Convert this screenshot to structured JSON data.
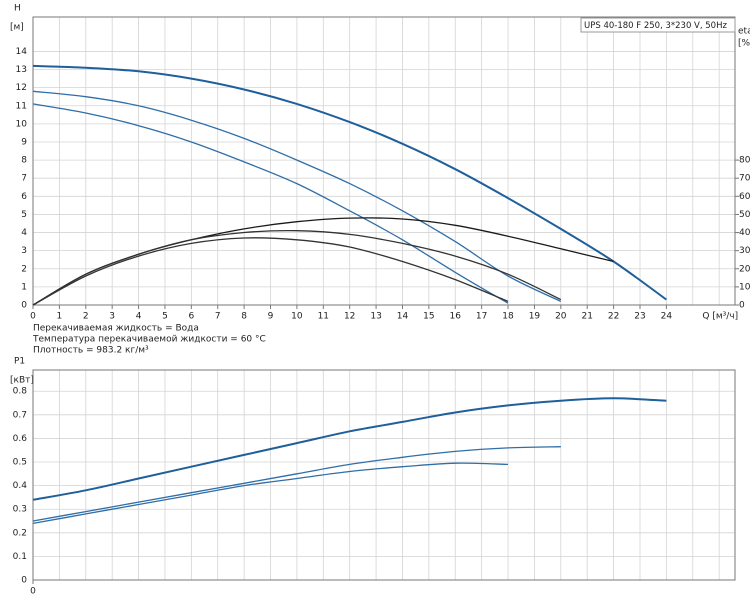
{
  "chart_data": [
    {
      "type": "line",
      "title": "UPS 40-180 F 250, 3*230 V, 50Hz",
      "ylabel": "H",
      "yunit": "[м]",
      "y2label": "eta",
      "y2unit": "[%]",
      "xlabel": "Q [м³/ч]",
      "notes": [
        "Перекачиваемая жидкость = Вода",
        "Температура перекачиваемой жидкости = 60 °C",
        "Плотность = 983.2 кг/м³"
      ],
      "x": [
        0,
        2,
        4,
        6,
        8,
        10,
        12,
        14,
        16,
        18,
        20,
        22,
        24
      ],
      "xlim": [
        0,
        26.6
      ],
      "xticks": [
        0,
        1,
        2,
        3,
        4,
        5,
        6,
        7,
        8,
        9,
        10,
        11,
        12,
        13,
        14,
        15,
        16,
        17,
        18,
        19,
        20,
        21,
        22,
        23,
        24
      ],
      "ylim": [
        0,
        15.9
      ],
      "yticks": [
        0,
        1,
        2,
        3,
        4,
        5,
        6,
        7,
        8,
        9,
        10,
        11,
        12,
        13,
        14
      ],
      "y2lim": [
        0,
        159
      ],
      "y2ticks": [
        0,
        10,
        20,
        30,
        40,
        50,
        60,
        70,
        80
      ],
      "grid": true,
      "series": [
        {
          "color": "#1f5f9a",
          "values": [
            13.2,
            13.1,
            12.9,
            12.5,
            11.9,
            11.1,
            10.1,
            8.9,
            7.5,
            5.9,
            4.2,
            2.4,
            0.3
          ]
        },
        {
          "color": "#2f6ea8",
          "values": [
            11.8,
            11.5,
            11.0,
            10.2,
            9.2,
            8.0,
            6.7,
            5.2,
            3.5,
            1.6,
            0.2,
            null,
            null
          ]
        },
        {
          "color": "#2f6ea8",
          "values": [
            11.1,
            10.6,
            9.9,
            9.0,
            7.9,
            6.7,
            5.2,
            3.6,
            1.8,
            0.1,
            null,
            null,
            null
          ]
        },
        {
          "color": "#1a1a1a",
          "axis": "y2",
          "values": [
            0,
            17,
            28,
            36,
            42,
            46,
            48,
            47.5,
            44,
            38,
            31,
            24,
            null
          ]
        },
        {
          "color": "#333333",
          "axis": "y2",
          "values": [
            0,
            17,
            28,
            36,
            40,
            41,
            39,
            34,
            27,
            17,
            3,
            null,
            null
          ]
        },
        {
          "color": "#333333",
          "axis": "y2",
          "values": [
            0,
            16,
            27,
            34,
            37,
            36,
            32,
            24,
            14,
            2,
            null,
            null,
            null
          ]
        }
      ]
    },
    {
      "type": "line",
      "ylabel": "P1",
      "yunit": "[кВт]",
      "x": [
        0,
        2,
        4,
        6,
        8,
        10,
        12,
        14,
        16,
        18,
        20,
        22,
        24
      ],
      "xlim": [
        0,
        26.6
      ],
      "xticks": [
        0
      ],
      "ylim": [
        0,
        0.89
      ],
      "yticks": [
        0,
        0.1,
        0.2,
        0.3,
        0.4,
        0.5,
        0.6,
        0.7,
        0.8
      ],
      "grid": true,
      "series": [
        {
          "color": "#1f5f9a",
          "values": [
            0.34,
            0.38,
            0.43,
            0.48,
            0.53,
            0.58,
            0.63,
            0.67,
            0.71,
            0.74,
            0.76,
            0.77,
            0.76
          ]
        },
        {
          "color": "#2f6ea8",
          "values": [
            0.25,
            0.29,
            0.33,
            0.37,
            0.41,
            0.45,
            0.49,
            0.52,
            0.545,
            0.56,
            0.565,
            null,
            null
          ]
        },
        {
          "color": "#2f6ea8",
          "values": [
            0.24,
            0.28,
            0.32,
            0.36,
            0.4,
            0.43,
            0.46,
            0.48,
            0.495,
            0.49,
            null,
            null,
            null
          ]
        }
      ]
    }
  ]
}
